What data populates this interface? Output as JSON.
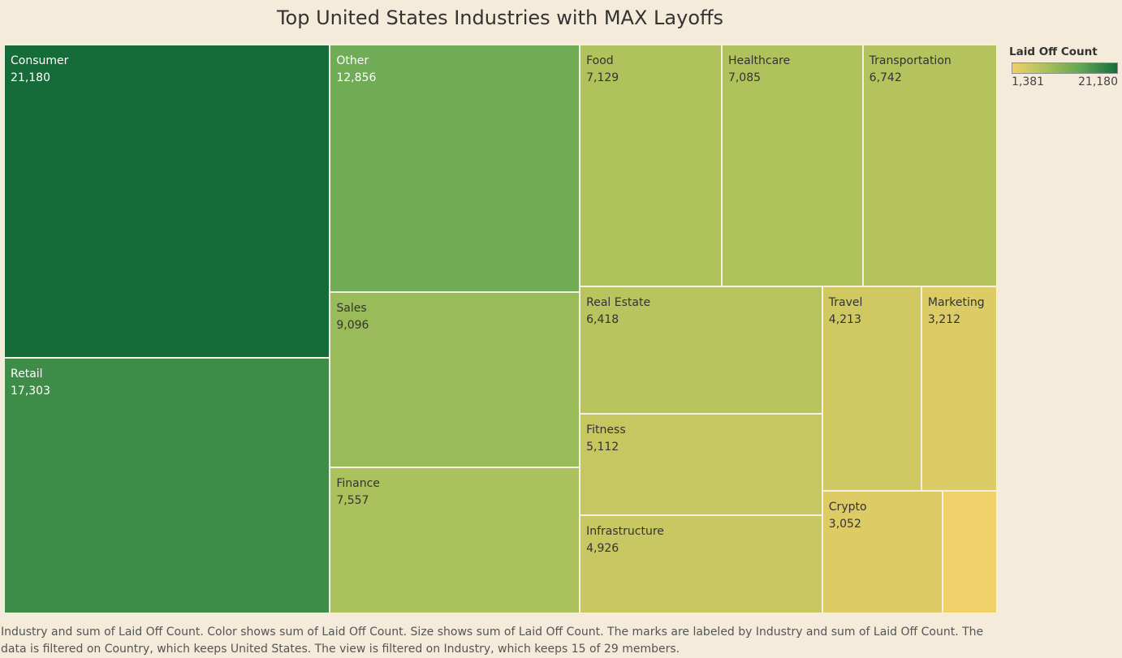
{
  "chart_data": {
    "type": "treemap",
    "title": "Top United States Industries with MAX Layoffs",
    "color_legend": {
      "title": "Laid Off Count",
      "min_label": "1,381",
      "max_label": "21,180"
    },
    "colors": {
      "low": "#f0d069",
      "high": "#166c39",
      "background": "#f4ebdb"
    },
    "items": [
      {
        "name": "Consumer",
        "value": 21180,
        "label": "21,180"
      },
      {
        "name": "Retail",
        "value": 17303,
        "label": "17,303"
      },
      {
        "name": "Other",
        "value": 12856,
        "label": "12,856"
      },
      {
        "name": "Sales",
        "value": 9096,
        "label": "9,096"
      },
      {
        "name": "Finance",
        "value": 7557,
        "label": "7,557"
      },
      {
        "name": "Food",
        "value": 7129,
        "label": "7,129"
      },
      {
        "name": "Healthcare",
        "value": 7085,
        "label": "7,085"
      },
      {
        "name": "Transportation",
        "value": 6742,
        "label": "6,742"
      },
      {
        "name": "Real Estate",
        "value": 6418,
        "label": "6,418"
      },
      {
        "name": "Fitness",
        "value": 5112,
        "label": "5,112"
      },
      {
        "name": "Infrastructure",
        "value": 4926,
        "label": "4,926"
      },
      {
        "name": "Travel",
        "value": 4213,
        "label": "4,213"
      },
      {
        "name": "Marketing",
        "value": 3212,
        "label": "3,212"
      },
      {
        "name": "Crypto",
        "value": 3052,
        "label": "3,052"
      },
      {
        "name": "",
        "value": 1381,
        "label": ""
      }
    ]
  },
  "caption": "Industry and sum of Laid Off Count.  Color shows sum of Laid Off Count.  Size shows sum of Laid Off Count.  The marks are labeled by Industry and sum of Laid Off Count. The data is filtered on Country, which keeps United States. The view is filtered on Industry, which keeps 15 of 29 members."
}
